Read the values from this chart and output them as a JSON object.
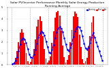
{
  "title": "Solar PV/Inverter Performance Monthly Solar Energy Production Running Average",
  "title_fontsize": 3.2,
  "bg_color": "#ffffff",
  "plot_bg_color": "#ffffff",
  "bar_color": "#ff0000",
  "avg_color": "#0000ff",
  "tick_color": "#000000",
  "grid_color": "#ffffff",
  "grid_bg_color": "#dddddd",
  "legend_colors": [
    "#0000cc",
    "#ff0000",
    "#cc0000"
  ],
  "legend_labels": [
    "Running",
    "Prod",
    "Est"
  ],
  "months_per_year": 12,
  "num_years": 5,
  "values": [
    10,
    20,
    60,
    120,
    200,
    280,
    310,
    280,
    190,
    100,
    30,
    8,
    25,
    50,
    140,
    220,
    330,
    390,
    420,
    380,
    250,
    140,
    55,
    18,
    40,
    75,
    190,
    290,
    410,
    455,
    470,
    430,
    295,
    170,
    65,
    22,
    42,
    85,
    200,
    305,
    420,
    460,
    445,
    415,
    265,
    155,
    50,
    15,
    30,
    60,
    160,
    250,
    370,
    420,
    10,
    5,
    3,
    2,
    1,
    0
  ],
  "running_avg": [
    10,
    15,
    35,
    70,
    120,
    180,
    220,
    235,
    220,
    190,
    140,
    90,
    65,
    60,
    90,
    130,
    185,
    240,
    275,
    290,
    278,
    255,
    205,
    155,
    110,
    100,
    130,
    175,
    235,
    285,
    315,
    330,
    318,
    285,
    235,
    178,
    132,
    122,
    148,
    188,
    242,
    290,
    318,
    335,
    325,
    298,
    248,
    188,
    145,
    135,
    152,
    192,
    238,
    278,
    240,
    200,
    160,
    120,
    80,
    40
  ],
  "ylim": [
    0,
    500
  ],
  "yticks": [
    0,
    100,
    200,
    300,
    400,
    500
  ],
  "ytick_labels": [
    "0",
    "1",
    "2",
    "3",
    "4",
    "5"
  ],
  "figsize": [
    1.6,
    1.0
  ],
  "dpi": 100,
  "num_bars": 60
}
